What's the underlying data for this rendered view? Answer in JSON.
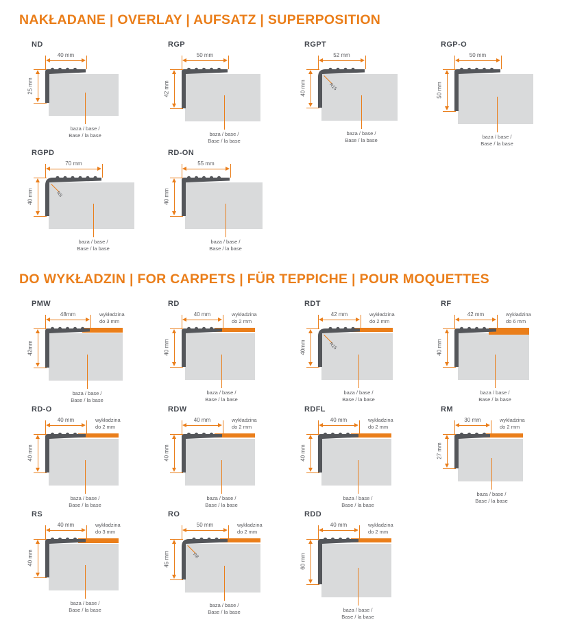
{
  "page": {
    "background": "#FFFFFF"
  },
  "colors": {
    "accent": "#EA7E1A",
    "profile": "#54565A",
    "base": "#D9DADB",
    "title_text": "#44484F",
    "label_text": "#5A5B5F"
  },
  "base_label": {
    "line1": "baza / base /",
    "line2": "Base / la base"
  },
  "sections": [
    {
      "title": "NAKŁADANE | OVERLAY | AUFSATZ | SUPERPOSITION",
      "profiles": [
        {
          "name": "ND",
          "width_mm": 40,
          "height_mm": 25,
          "width_label": "40 mm",
          "height_label": "25 mm"
        },
        {
          "name": "RGP",
          "width_mm": 50,
          "height_mm": 42,
          "width_label": "50 mm",
          "height_label": "42 mm"
        },
        {
          "name": "RGPT",
          "width_mm": 52,
          "height_mm": 40,
          "width_label": "52 mm",
          "height_label": "40 mm",
          "radius": "R15"
        },
        {
          "name": "RGP-O",
          "width_mm": 50,
          "height_mm": 50,
          "width_label": "50 mm",
          "height_label": "50 mm"
        },
        {
          "name": "RGPD",
          "width_mm": 70,
          "height_mm": 40,
          "width_label": "70 mm",
          "height_label": "40 mm",
          "radius": "R8"
        },
        {
          "name": "RD-ON",
          "width_mm": 55,
          "height_mm": 40,
          "width_label": "55 mm",
          "height_label": "40 mm"
        }
      ]
    },
    {
      "title": "DO WYKŁADZIN | FOR CARPETS | FÜR TEPPICHE | POUR MOQUETTES",
      "profiles": [
        {
          "name": "PMW",
          "width_mm": 48,
          "height_mm": 42,
          "width_label": "48mm",
          "height_label": "42mm",
          "carpet_mm": 3,
          "carpet_line1": "wykładzina",
          "carpet_line2": "do 3 mm"
        },
        {
          "name": "RD",
          "width_mm": 40,
          "height_mm": 40,
          "width_label": "40 mm",
          "height_label": "40 mm",
          "carpet_mm": 2,
          "carpet_line1": "wykładzina",
          "carpet_line2": "do 2 mm"
        },
        {
          "name": "RDT",
          "width_mm": 42,
          "height_mm": 40,
          "width_label": "42 mm",
          "height_label": "40mm",
          "carpet_mm": 2,
          "carpet_line1": "wykładzina",
          "carpet_line2": "do 2 mm",
          "radius": "R15"
        },
        {
          "name": "RF",
          "width_mm": 42,
          "height_mm": 40,
          "width_label": "42 mm",
          "height_label": "40 mm",
          "carpet_mm": 6,
          "carpet_line1": "wykładzina",
          "carpet_line2": "do 6 mm"
        },
        {
          "name": "RD-O",
          "width_mm": 40,
          "height_mm": 40,
          "width_label": "40 mm",
          "height_label": "40 mm",
          "carpet_mm": 2,
          "carpet_line1": "wykładzina",
          "carpet_line2": "do 2 mm"
        },
        {
          "name": "RDW",
          "width_mm": 40,
          "height_mm": 40,
          "width_label": "40 mm",
          "height_label": "40 mm",
          "carpet_mm": 2,
          "carpet_line1": "wykładzina",
          "carpet_line2": "do 2 mm"
        },
        {
          "name": "RDFL",
          "width_mm": 40,
          "height_mm": 40,
          "width_label": "40 mm",
          "height_label": "40 mm",
          "carpet_mm": 2,
          "carpet_line1": "wykładzina",
          "carpet_line2": "do 2 mm"
        },
        {
          "name": "RM",
          "width_mm": 30,
          "height_mm": 27,
          "width_label": "30 mm",
          "height_label": "27 mm",
          "carpet_mm": 2,
          "carpet_line1": "wykładzina",
          "carpet_line2": "do 2 mm"
        },
        {
          "name": "RS",
          "width_mm": 40,
          "height_mm": 40,
          "width_label": "40 mm",
          "height_label": "40 mm",
          "carpet_mm": 3,
          "carpet_line1": "wykładzina",
          "carpet_line2": "do 3 mm"
        },
        {
          "name": "RO",
          "width_mm": 50,
          "height_mm": 45,
          "width_label": "50 mm",
          "height_label": "45 mm",
          "carpet_mm": 2,
          "carpet_line1": "wykładzina",
          "carpet_line2": "do 2 mm",
          "radius": "R8"
        },
        {
          "name": "RDD",
          "width_mm": 40,
          "height_mm": 60,
          "width_label": "40 mm",
          "height_label": "60 mm",
          "carpet_mm": 2,
          "carpet_line1": "wykładzina",
          "carpet_line2": "do 2 mm"
        }
      ]
    }
  ]
}
